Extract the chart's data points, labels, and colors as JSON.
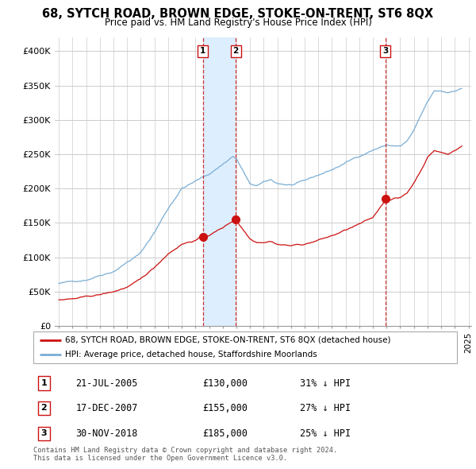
{
  "title": "68, SYTCH ROAD, BROWN EDGE, STOKE-ON-TRENT, ST6 8QX",
  "subtitle": "Price paid vs. HM Land Registry's House Price Index (HPI)",
  "hpi_color": "#7aadd4",
  "price_color": "#cc1111",
  "background_color": "#ffffff",
  "grid_color": "#cccccc",
  "ylim": [
    0,
    420000
  ],
  "yticks": [
    0,
    50000,
    100000,
    150000,
    200000,
    250000,
    300000,
    350000,
    400000
  ],
  "ytick_labels": [
    "£0",
    "£50K",
    "£100K",
    "£150K",
    "£200K",
    "£250K",
    "£300K",
    "£350K",
    "£400K"
  ],
  "xlim_left": 1994.7,
  "xlim_right": 2025.2,
  "transactions": [
    {
      "date": "21-JUL-2005",
      "price": 130000,
      "label": "1",
      "pct": "31%",
      "x_year": 2005.54
    },
    {
      "date": "17-DEC-2007",
      "price": 155000,
      "label": "2",
      "pct": "27%",
      "x_year": 2007.96
    },
    {
      "date": "30-NOV-2018",
      "price": 185000,
      "label": "3",
      "pct": "25%",
      "x_year": 2018.92
    }
  ],
  "legend_property": "68, SYTCH ROAD, BROWN EDGE, STOKE-ON-TRENT, ST6 8QX (detached house)",
  "legend_hpi": "HPI: Average price, detached house, Staffordshire Moorlands",
  "footer1": "Contains HM Land Registry data © Crown copyright and database right 2024.",
  "footer2": "This data is licensed under the Open Government Licence v3.0.",
  "shade_between_1_2": true,
  "shade_color": "#ddeeff"
}
